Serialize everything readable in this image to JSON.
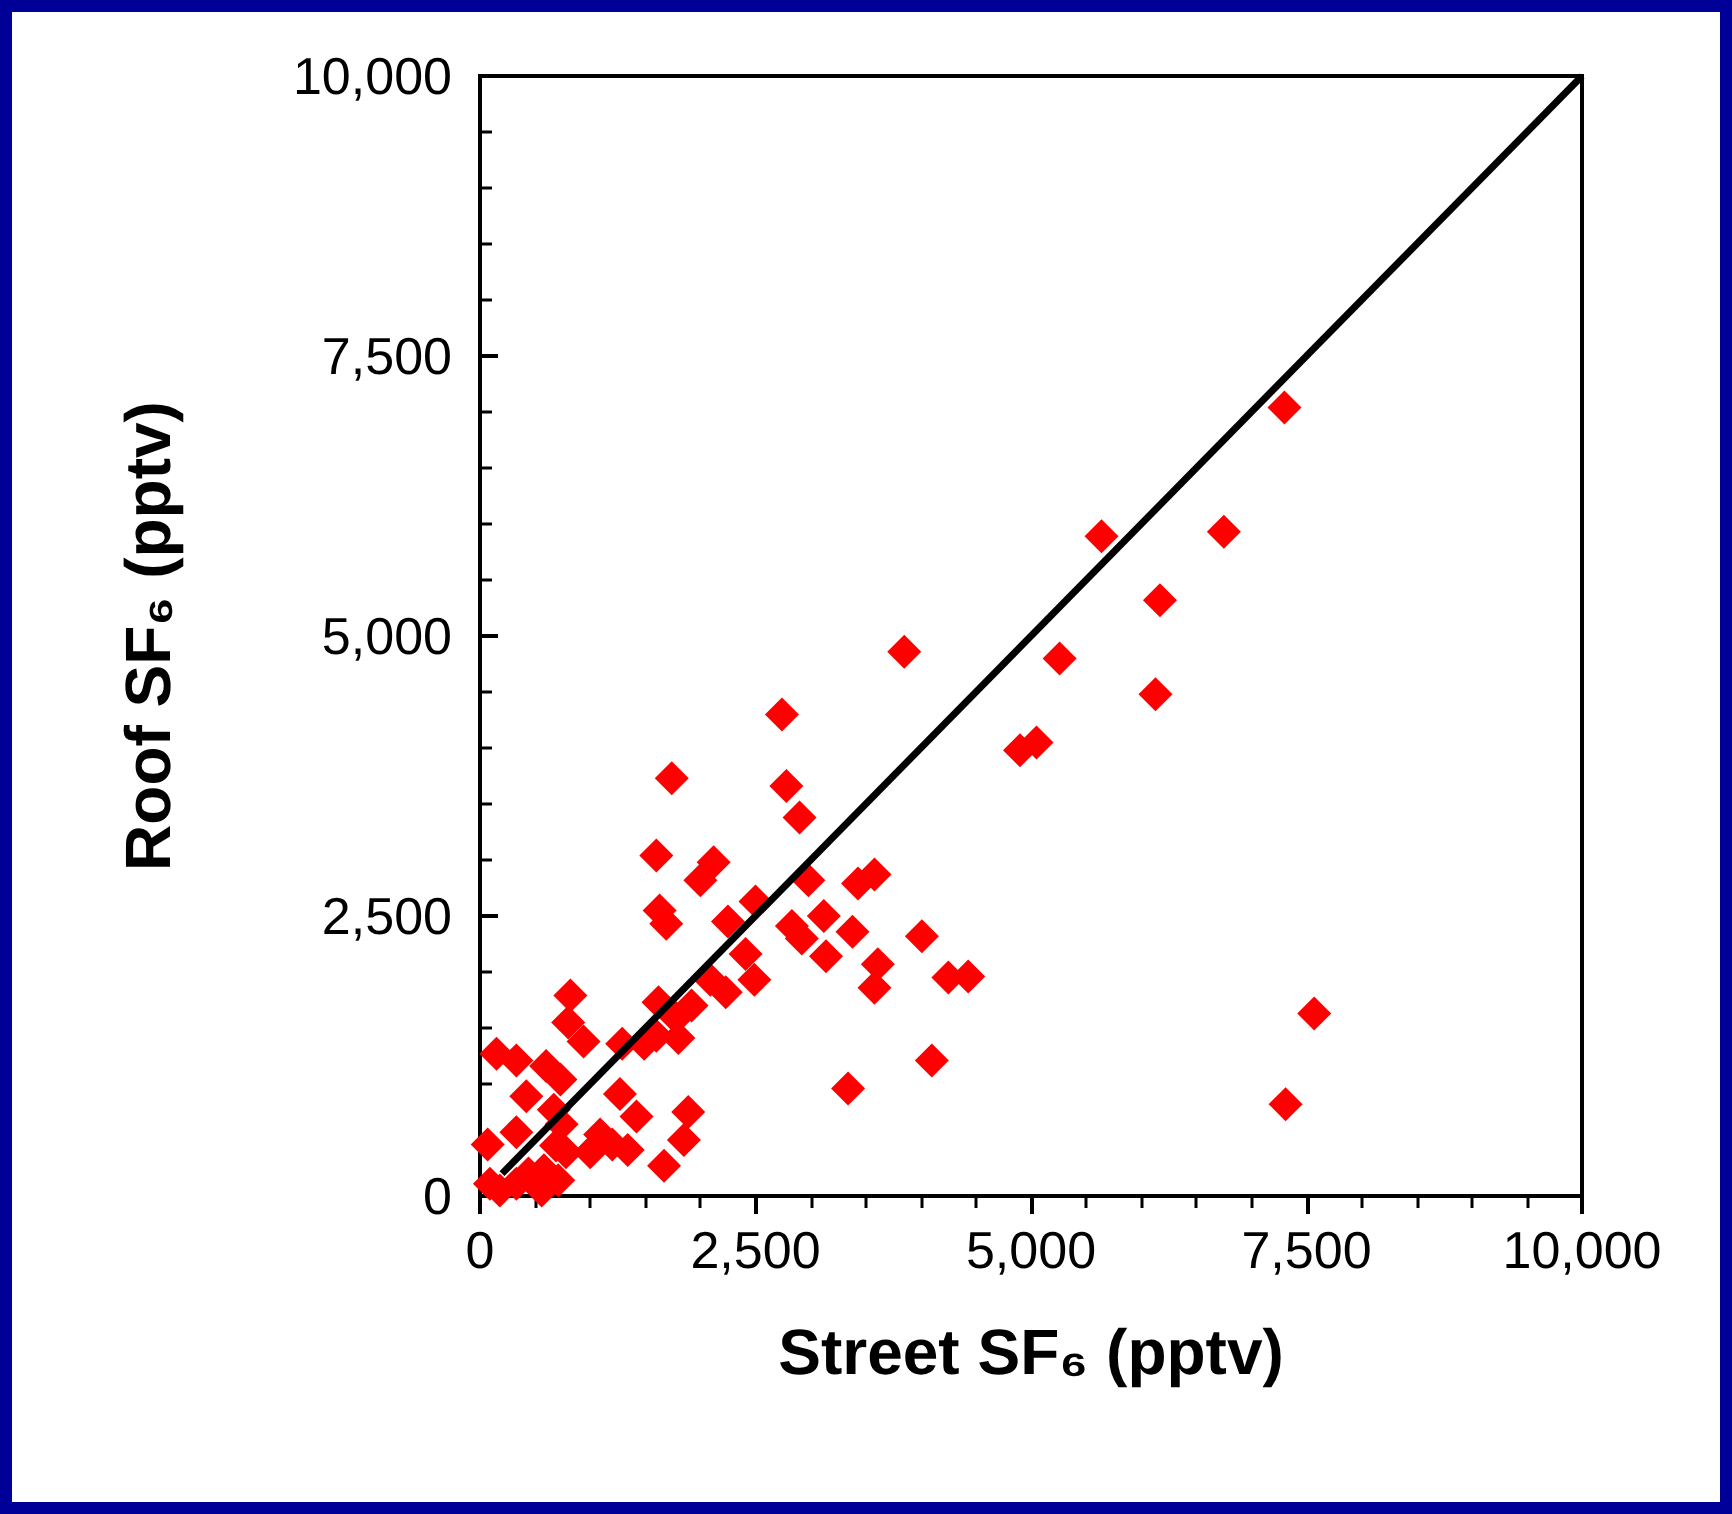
{
  "chart_data": {
    "type": "scatter",
    "xlabel": "Street SF₆ (pptv)",
    "ylabel": "Roof SF₆ (pptv)",
    "xlim": [
      0,
      10000
    ],
    "ylim": [
      0,
      10000
    ],
    "xticks": [
      0,
      {
        "value": 2500,
        "label": "2,500"
      },
      {
        "value": 5000,
        "label": "5,000"
      },
      {
        "value": 7500,
        "label": "7,500"
      },
      {
        "value": 10000,
        "label": "10,000"
      }
    ],
    "yticks": [
      0,
      {
        "value": 2500,
        "label": "2,500"
      },
      {
        "value": 5000,
        "label": "5,000"
      },
      {
        "value": 7500,
        "label": "7,500"
      },
      {
        "value": 10000,
        "label": "10,000"
      }
    ],
    "grid": false,
    "marker": "diamond",
    "series": [
      {
        "type": "scatter",
        "color": "#ff0000",
        "x": [
          7300,
          5640,
          6750,
          6170,
          5260,
          3850,
          6130,
          5050,
          4900,
          2740,
          1740,
          2780,
          2900,
          1600,
          3580,
          3430,
          2120,
          2000,
          1630,
          1690,
          2980,
          2500,
          2250,
          3120,
          2920,
          4010,
          2410,
          3610,
          2830,
          3380,
          3140,
          2490,
          4250,
          4430,
          3580,
          2090,
          2230,
          1620,
          1920,
          1780,
          1600,
          1800,
          1490,
          1290,
          820,
          800,
          940,
          150,
          330,
          600,
          730,
          420,
          1270,
          1420,
          1890,
          4100,
          3340,
          7310,
          7570,
          1850,
          1670,
          1340,
          1090,
          1200,
          690,
          330,
          70,
          90,
          330,
          560,
          710,
          780,
          580,
          1000,
          180,
          440,
          740,
          670
        ],
        "values": [
          7040,
          5890,
          5930,
          5320,
          4800,
          4860,
          4480,
          4050,
          3980,
          4300,
          3730,
          3660,
          3380,
          3040,
          2870,
          2790,
          2980,
          2820,
          2550,
          2430,
          2820,
          2630,
          2450,
          2500,
          2300,
          2320,
          2160,
          2070,
          2410,
          2360,
          2140,
          1930,
          1950,
          1960,
          1860,
          1930,
          1820,
          1730,
          1700,
          1590,
          1430,
          1410,
          1360,
          1360,
          1790,
          1550,
          1380,
          1270,
          1210,
          1160,
          1040,
          890,
          910,
          710,
          750,
          1210,
          960,
          820,
          1630,
          500,
          270,
          410,
          550,
          460,
          450,
          570,
          460,
          110,
          110,
          50,
          140,
          390,
          230,
          390,
          50,
          200,
          640,
          770
        ]
      },
      {
        "type": "line",
        "color": "#000000",
        "x": [
          200,
          10000
        ],
        "values": [
          200,
          10000
        ],
        "marker": "none",
        "line_style": "solid"
      }
    ]
  }
}
